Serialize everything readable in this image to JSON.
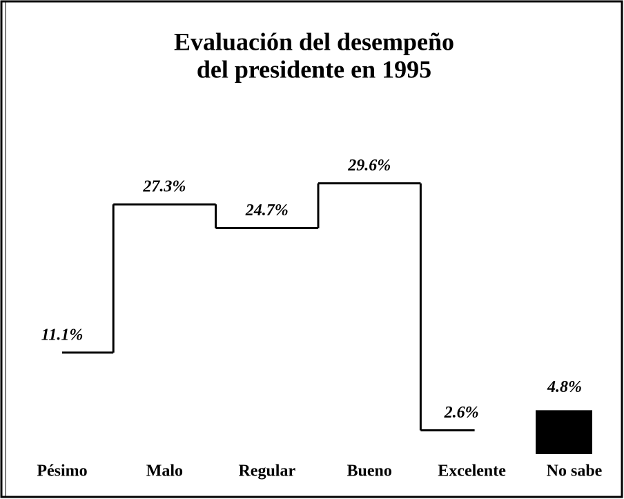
{
  "chart_data": {
    "type": "step",
    "title": [
      "Evaluación del desempeño",
      "del presidente en 1995"
    ],
    "categories": [
      "Pésimo",
      "Malo",
      "Regular",
      "Bueno",
      "Excelente",
      "No sabe"
    ],
    "ylim": [
      0,
      35
    ],
    "series": [
      {
        "type": "step",
        "color": "#000000",
        "values": [
          11.1,
          27.3,
          24.7,
          29.6,
          2.6,
          null
        ],
        "value_labels": [
          "11.1%",
          "27.3%",
          "24.7%",
          "29.6%",
          "2.6%",
          null
        ]
      },
      {
        "type": "bar",
        "color": "#000000",
        "values": [
          null,
          null,
          null,
          null,
          null,
          4.8
        ],
        "value_labels": [
          null,
          null,
          null,
          null,
          null,
          "4.8%"
        ]
      }
    ]
  }
}
